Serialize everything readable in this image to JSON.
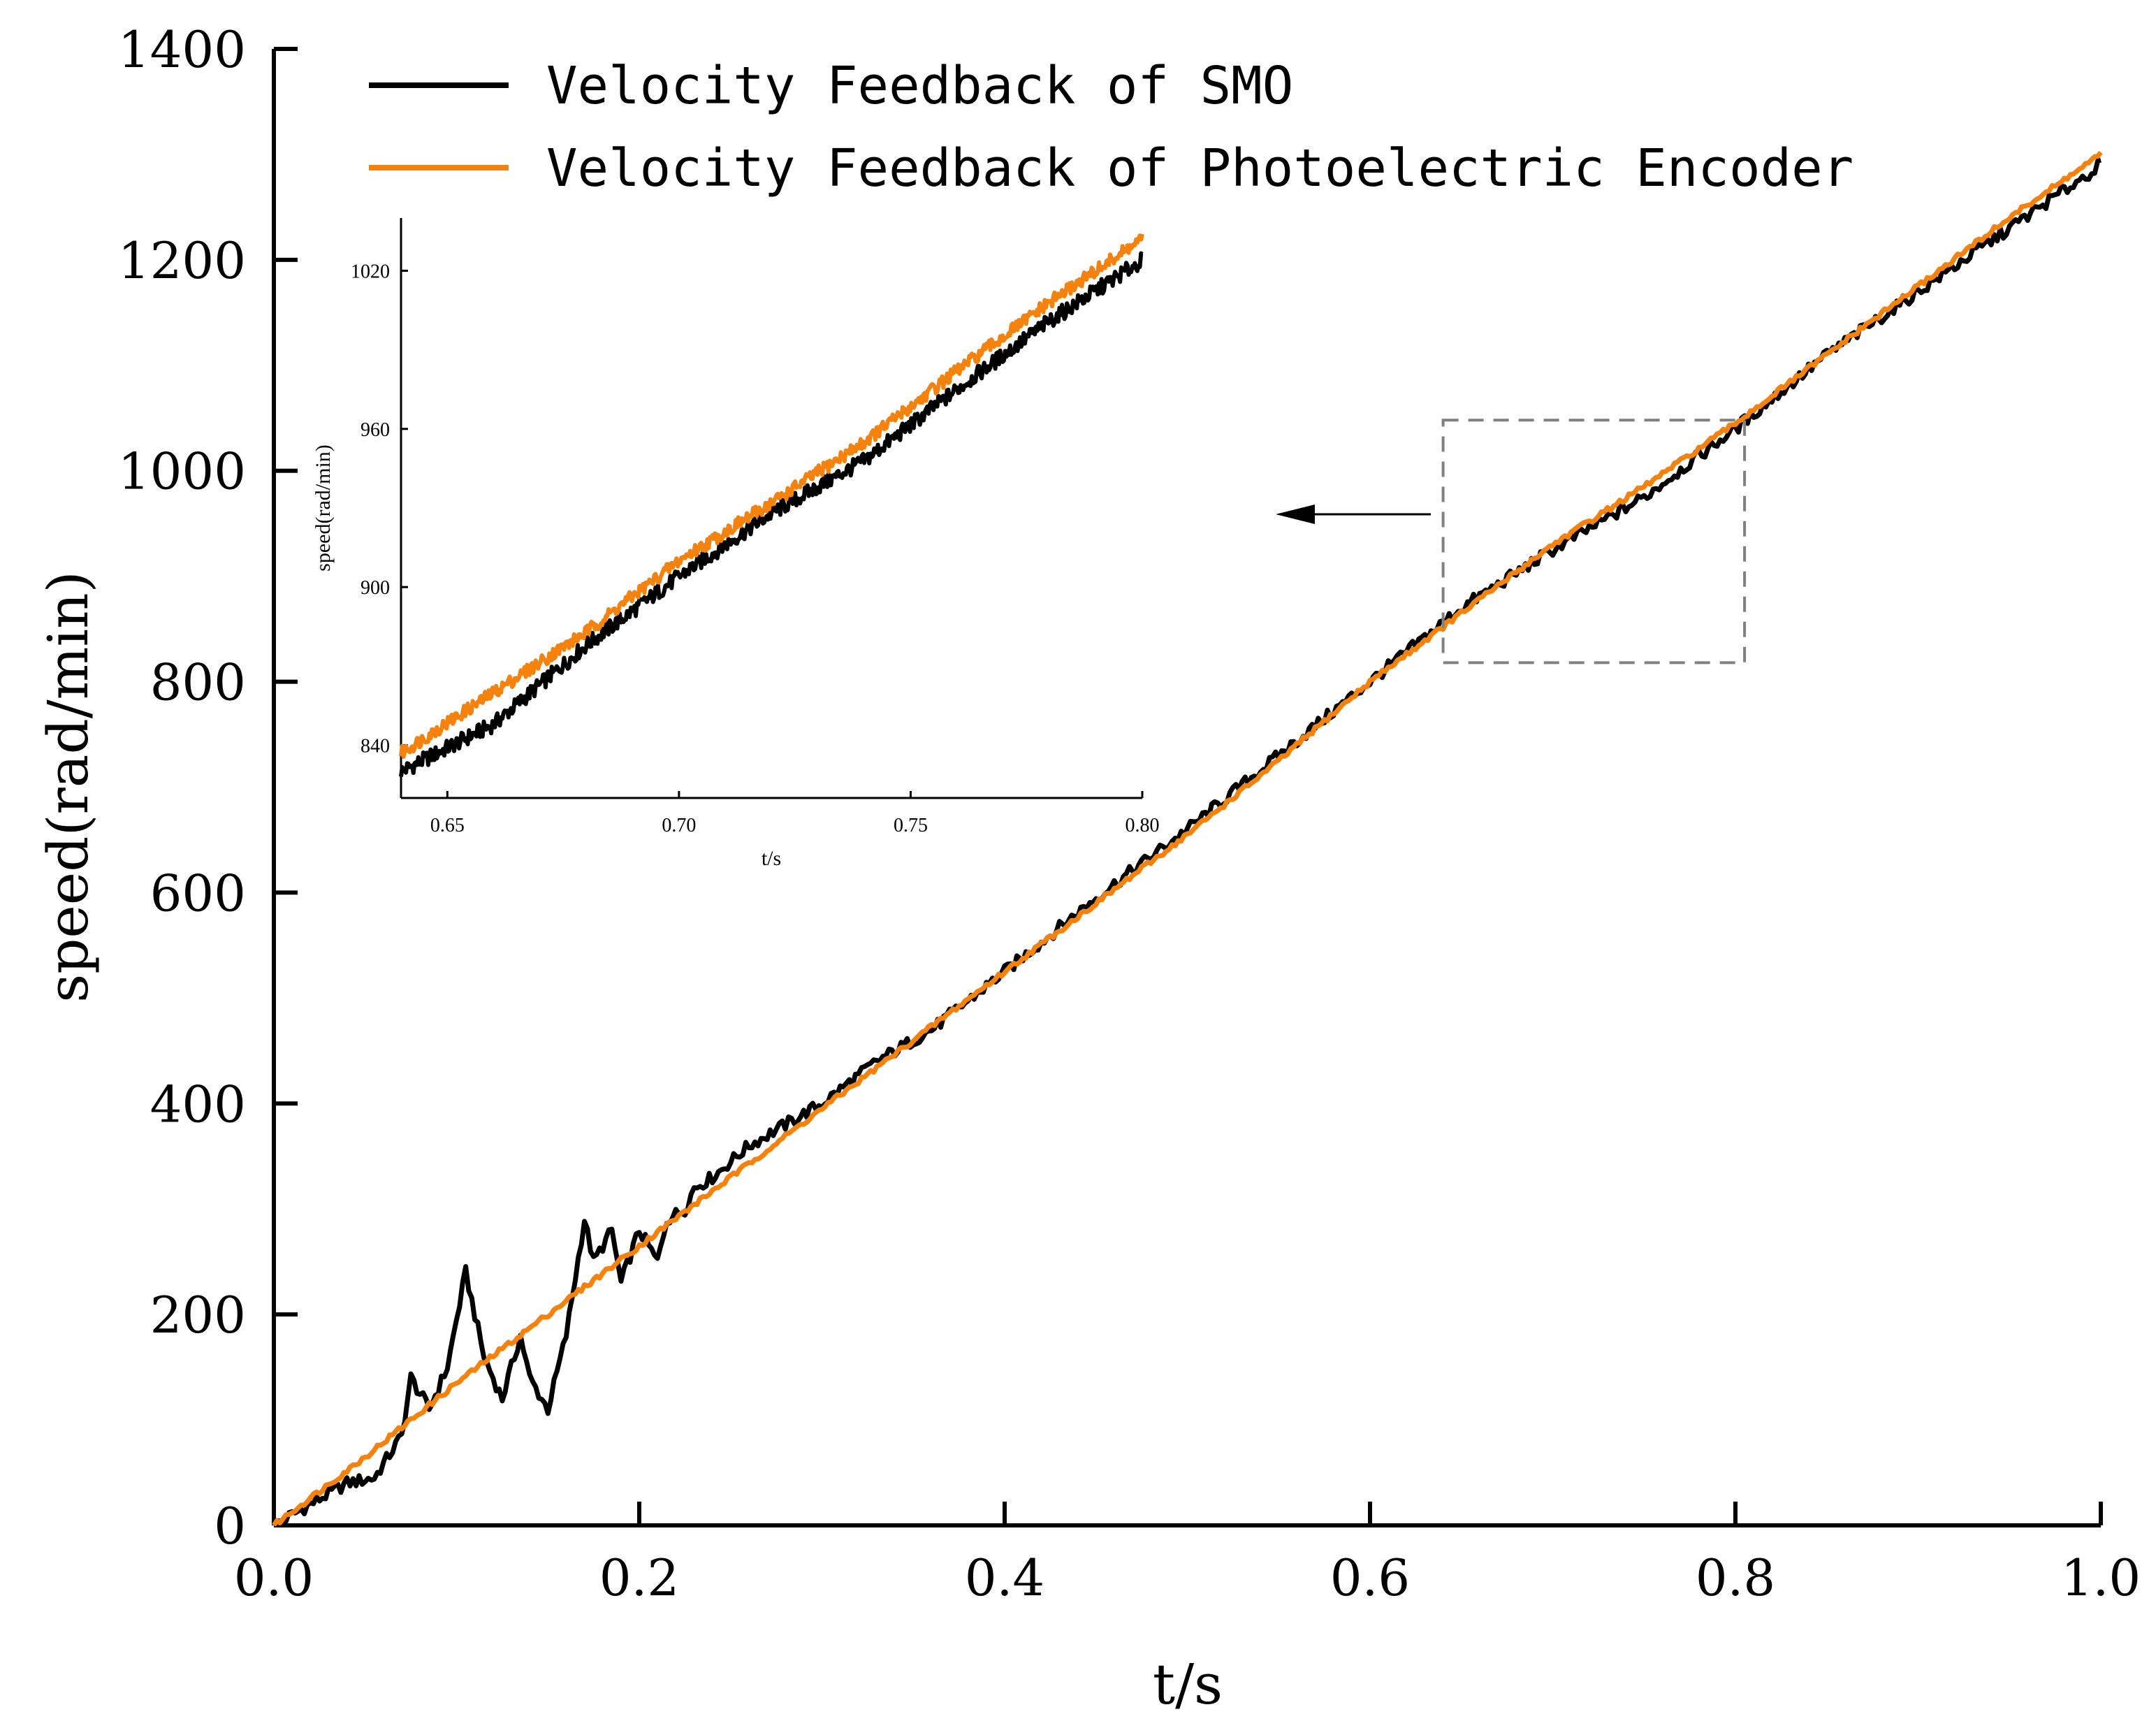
{
  "chart_data": {
    "type": "line",
    "main": {
      "xlabel": "t/s",
      "ylabel": "speed(rad/min)",
      "xlim": [
        0.0,
        1.0
      ],
      "ylim": [
        0,
        1400
      ],
      "xticks": [
        "0.0",
        "0.2",
        "0.4",
        "0.6",
        "0.8",
        "1.0"
      ],
      "yticks": [
        "0",
        "200",
        "400",
        "600",
        "800",
        "1000",
        "1200",
        "1400"
      ],
      "grid": false,
      "legend_position": "top-left",
      "series": [
        {
          "name": "Velocity Feedback of SMO",
          "color": "#000000",
          "x": [
            0.0,
            0.02,
            0.04,
            0.055,
            0.07,
            0.075,
            0.085,
            0.095,
            0.105,
            0.115,
            0.125,
            0.135,
            0.14,
            0.15,
            0.16,
            0.17,
            0.175,
            0.185,
            0.19,
            0.2,
            0.21,
            0.215,
            0.225,
            0.23,
            0.24,
            0.26,
            0.28,
            0.3,
            0.33,
            0.36,
            0.4,
            0.45,
            0.5,
            0.55,
            0.6,
            0.65,
            0.7,
            0.75,
            0.8,
            0.85,
            0.9,
            0.95,
            1.0
          ],
          "y": [
            0,
            20,
            40,
            45,
            85,
            140,
            110,
            150,
            240,
            160,
            120,
            180,
            140,
            110,
            180,
            290,
            250,
            280,
            230,
            280,
            250,
            290,
            300,
            320,
            330,
            360,
            380,
            400,
            440,
            470,
            525,
            595,
            660,
            730,
            800,
            870,
            925,
            975,
            1040,
            1110,
            1170,
            1230,
            1290
          ]
        },
        {
          "name": "Velocity Feedback of Photoelectric Encoder",
          "color": "#f5820d",
          "x": [
            0.0,
            0.05,
            0.1,
            0.15,
            0.2,
            0.25,
            0.3,
            0.35,
            0.4,
            0.45,
            0.5,
            0.55,
            0.6,
            0.65,
            0.7,
            0.75,
            0.8,
            0.85,
            0.9,
            0.95,
            1.0
          ],
          "y": [
            0,
            65,
            135,
            200,
            265,
            330,
            395,
            460,
            525,
            590,
            655,
            725,
            800,
            865,
            930,
            985,
            1045,
            1110,
            1175,
            1240,
            1300
          ]
        }
      ],
      "zoom_box": {
        "x": [
          0.64,
          0.805
        ],
        "y": [
          818,
          1048
        ]
      }
    },
    "inset": {
      "xlabel": "t/s",
      "ylabel": "speed(rad/min)",
      "xlim": [
        0.64,
        0.8
      ],
      "ylim": [
        820,
        1040
      ],
      "xticks": [
        "0.65",
        "0.70",
        "0.75",
        "0.80"
      ],
      "yticks": [
        "840",
        "900",
        "960",
        "1020"
      ],
      "series": [
        {
          "name": "Velocity Feedback of SMO",
          "color": "#000000",
          "x": [
            0.64,
            0.66,
            0.68,
            0.7,
            0.72,
            0.74,
            0.76,
            0.78,
            0.8
          ],
          "y": [
            830,
            848,
            878,
            904,
            928,
            948,
            975,
            1001,
            1024
          ]
        },
        {
          "name": "Velocity Feedback of Photoelectric Encoder",
          "color": "#f5820d",
          "x": [
            0.64,
            0.66,
            0.68,
            0.7,
            0.72,
            0.74,
            0.76,
            0.78,
            0.8
          ],
          "y": [
            837,
            860,
            883,
            910,
            932,
            955,
            982,
            1008,
            1032
          ]
        }
      ]
    }
  }
}
